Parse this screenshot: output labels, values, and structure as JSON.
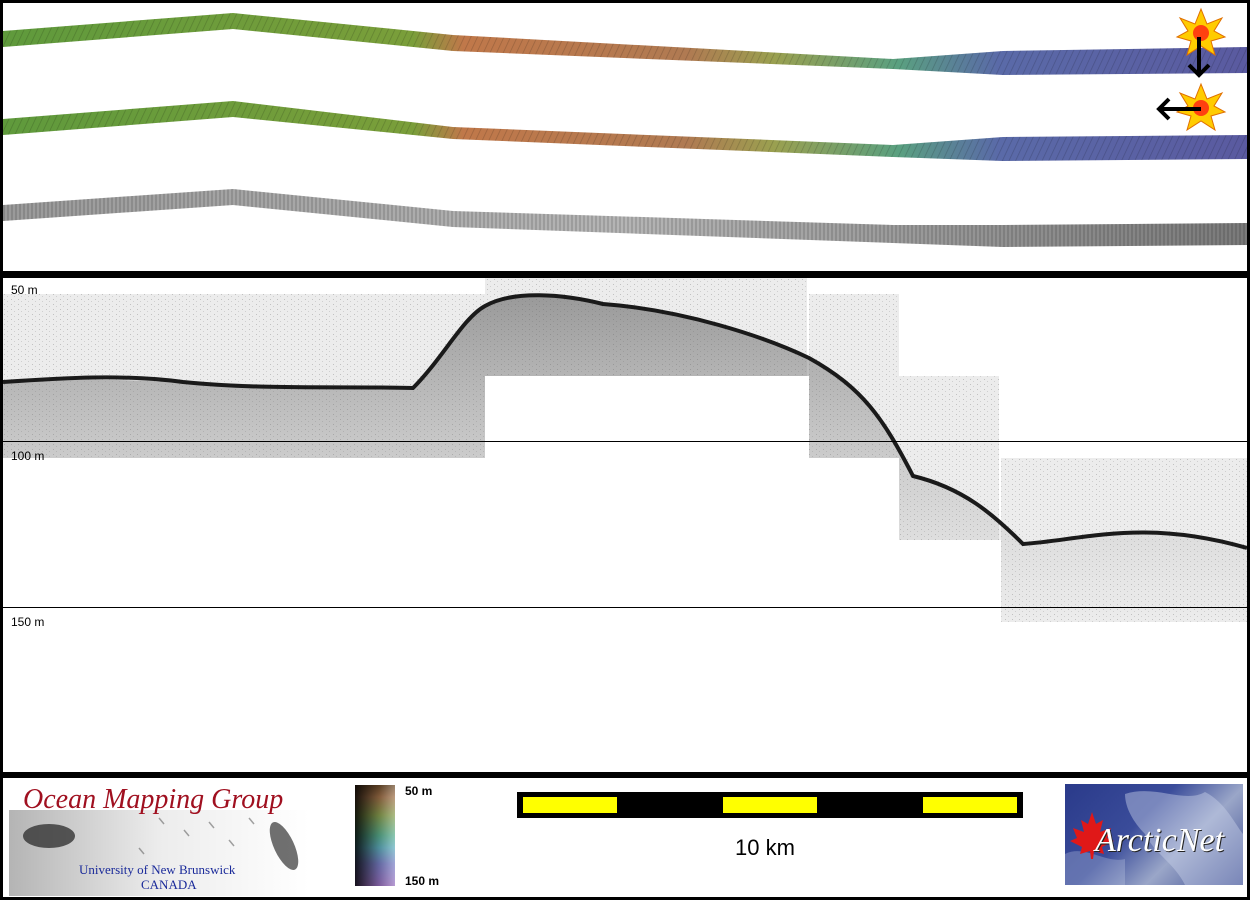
{
  "profile": {
    "depth_labels": [
      "50 m",
      "100 m",
      "150 m"
    ]
  },
  "legend": {
    "colorbar": {
      "min_label": "50 m",
      "max_label": "150 m"
    },
    "scale_bar": {
      "label": "10 km",
      "colors": [
        "#ffff00",
        "#000000"
      ]
    }
  },
  "logos": {
    "omg": {
      "title": "Ocean Mapping Group",
      "subtitle": "University of New Brunswick",
      "country": "CANADA"
    },
    "arcticnet": {
      "text": "ArcticNet"
    }
  },
  "icons": [
    "sun-marker-icon",
    "arrow-down-icon",
    "arrow-left-icon",
    "maple-leaf-icon"
  ],
  "colors": {
    "swath_green": "#6a9a40",
    "swath_orange": "#b8704a",
    "swath_blue": "#5a5aa6",
    "omg_red": "#a01020",
    "omg_blue": "#1a2a9a"
  }
}
